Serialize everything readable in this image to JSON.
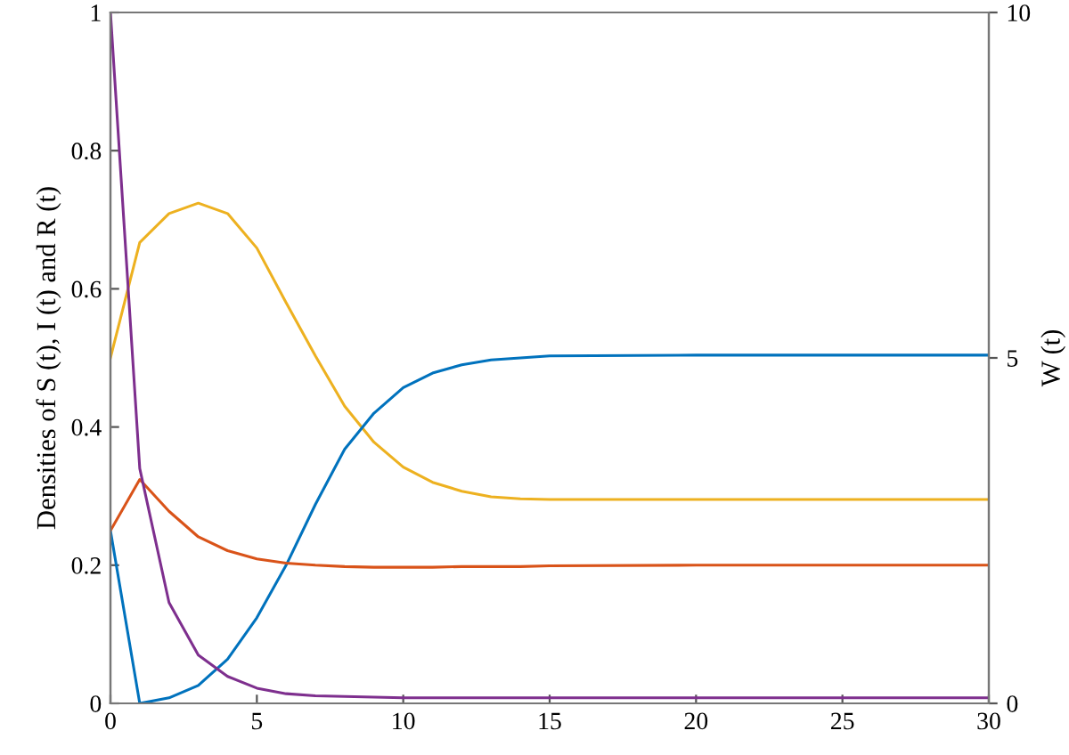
{
  "chart_data": {
    "type": "line",
    "ylabel": "Densities of S (t), I (t) and R (t)",
    "y2label": "W (t)",
    "x": [
      0,
      1,
      2,
      3,
      4,
      5,
      6,
      7,
      8,
      9,
      10,
      11,
      12,
      13,
      14,
      15,
      20,
      25,
      30
    ],
    "series": [
      {
        "color": "#edb120",
        "values": [
          0.5,
          0.667,
          0.709,
          0.724,
          0.709,
          0.659,
          0.58,
          0.503,
          0.43,
          0.378,
          0.342,
          0.32,
          0.307,
          0.299,
          0.296,
          0.295,
          0.295,
          0.295,
          0.295
        ]
      },
      {
        "color": "#0072bd",
        "values": [
          0.25,
          0,
          0.008,
          0.026,
          0.064,
          0.124,
          0.2,
          0.288,
          0.368,
          0.42,
          0.457,
          0.478,
          0.49,
          0.497,
          0.5,
          0.503,
          0.504,
          0.504,
          0.504
        ]
      },
      {
        "color": "#d95319",
        "values": [
          0.25,
          0.324,
          0.278,
          0.241,
          0.221,
          0.209,
          0.203,
          0.2,
          0.198,
          0.197,
          0.197,
          0.197,
          0.198,
          0.198,
          0.198,
          0.199,
          0.2,
          0.2,
          0.2
        ]
      },
      {
        "color": "#7e2f8e",
        "values": [
          1.0,
          0.34,
          0.146,
          0.07,
          0.039,
          0.022,
          0.014,
          0.011,
          0.01,
          0.009,
          0.008,
          0.008,
          0.008,
          0.008,
          0.008,
          0.008,
          0.008,
          0.008,
          0.008
        ]
      }
    ],
    "xlim": [
      0,
      30
    ],
    "xticks": [
      0,
      5,
      10,
      15,
      20,
      25,
      30
    ],
    "ylim": [
      0,
      1
    ],
    "yticks": [
      0,
      0.2,
      0.4,
      0.6,
      0.8,
      1
    ],
    "y2lim": [
      0,
      10
    ],
    "y2ticks": [
      0,
      5,
      10
    ],
    "grid": false,
    "legend": false,
    "marker": "none",
    "line_style": "solid"
  }
}
